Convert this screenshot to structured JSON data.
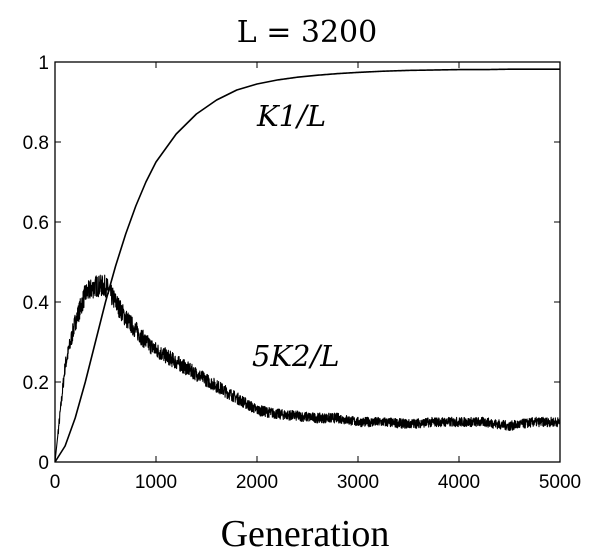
{
  "chart_data": {
    "type": "line",
    "title": "L = 3200",
    "xlabel": "Generation",
    "ylabel": "",
    "xlim": [
      0,
      5000
    ],
    "ylim": [
      0,
      1
    ],
    "xticks": [
      0,
      1000,
      2000,
      3000,
      4000,
      5000
    ],
    "yticks": [
      0,
      0.2,
      0.4,
      0.6,
      0.8,
      1
    ],
    "xtick_labels": [
      "0",
      "1000",
      "2000",
      "3000",
      "4000",
      "5000"
    ],
    "ytick_labels": [
      "0",
      "0.2",
      "0.4",
      "0.6",
      "0.8",
      "1"
    ],
    "grid": false,
    "series": [
      {
        "name": "K1/L",
        "x": [
          0,
          100,
          200,
          300,
          400,
          500,
          600,
          700,
          800,
          900,
          1000,
          1200,
          1400,
          1600,
          1800,
          2000,
          2200,
          2400,
          2600,
          2800,
          3000,
          3250,
          3500,
          3750,
          4000,
          4250,
          4500,
          4750,
          5000
        ],
        "y": [
          0,
          0.04,
          0.11,
          0.2,
          0.3,
          0.4,
          0.49,
          0.57,
          0.64,
          0.7,
          0.75,
          0.82,
          0.87,
          0.905,
          0.93,
          0.945,
          0.955,
          0.962,
          0.967,
          0.971,
          0.974,
          0.977,
          0.979,
          0.98,
          0.981,
          0.981,
          0.982,
          0.982,
          0.982
        ]
      },
      {
        "name": "5K2/L",
        "x": [
          0,
          100,
          200,
          300,
          400,
          500,
          600,
          700,
          800,
          900,
          1000,
          1200,
          1400,
          1600,
          1800,
          2000,
          2200,
          2400,
          2600,
          2800,
          3000,
          3250,
          3500,
          3750,
          4000,
          4250,
          4500,
          4750,
          5000
        ],
        "y": [
          0,
          0.24,
          0.35,
          0.42,
          0.44,
          0.44,
          0.4,
          0.36,
          0.33,
          0.3,
          0.28,
          0.25,
          0.22,
          0.19,
          0.16,
          0.13,
          0.12,
          0.115,
          0.11,
          0.11,
          0.1,
          0.1,
          0.095,
          0.1,
          0.1,
          0.1,
          0.09,
          0.1,
          0.1
        ],
        "noise": true
      }
    ],
    "annotations": [
      {
        "text": "K1/L",
        "x": 2000,
        "y": 0.84
      },
      {
        "text": "5K2/L",
        "x": 1950,
        "y": 0.24
      }
    ]
  }
}
